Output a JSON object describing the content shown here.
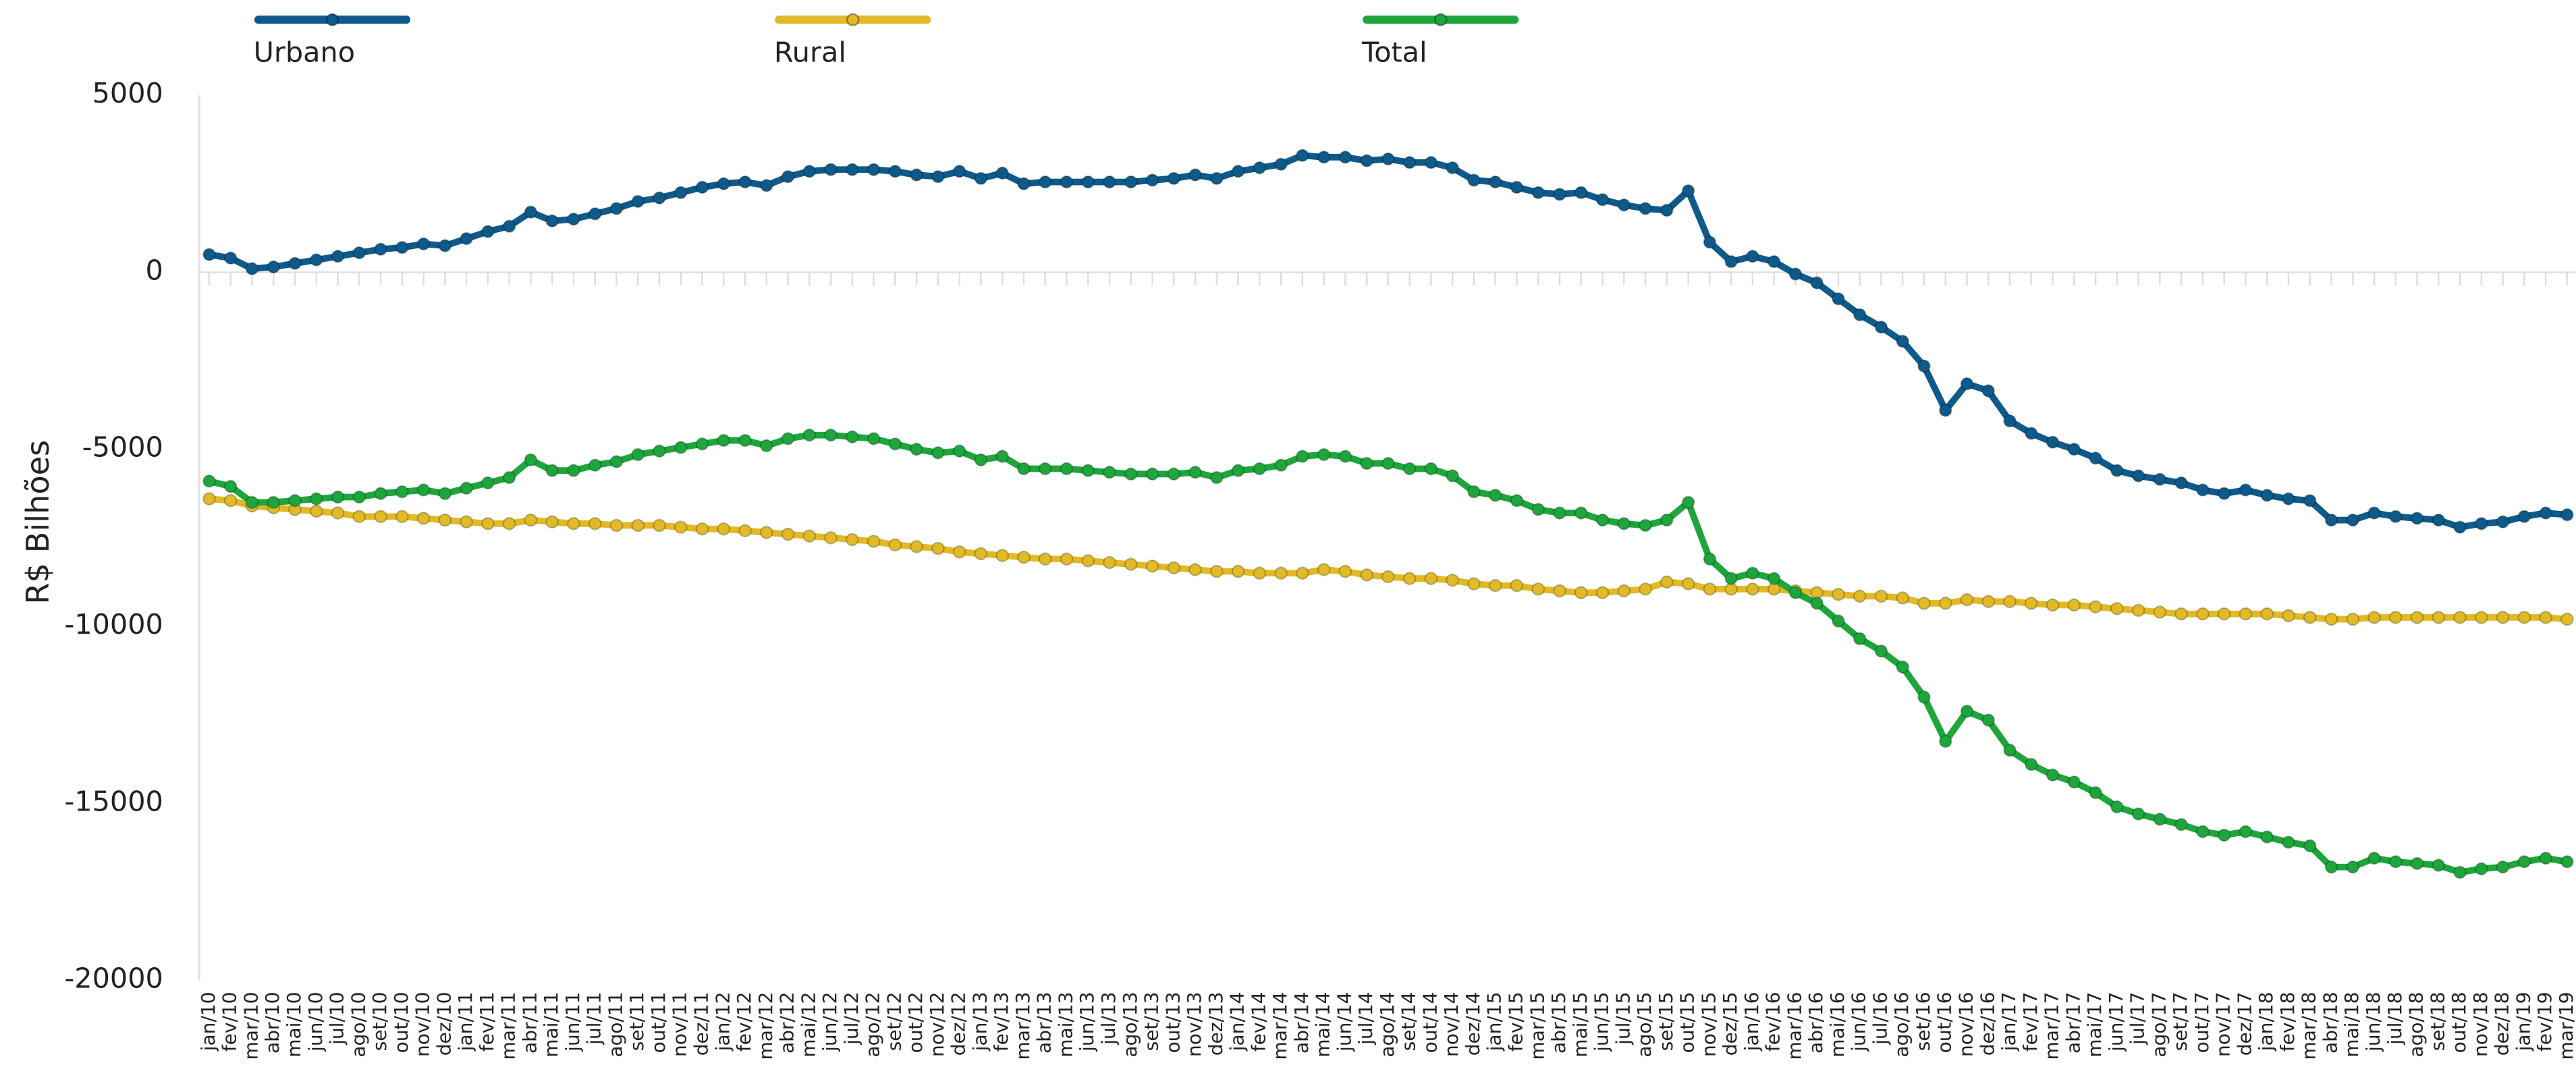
{
  "chart_data": {
    "type": "line",
    "y_label": "R$ Bilhões",
    "categories": [
      "jan/10",
      "fev/10",
      "mar/10",
      "abr/10",
      "mai/10",
      "jun/10",
      "jul/10",
      "ago/10",
      "set/10",
      "out/10",
      "nov/10",
      "dez/10",
      "jan/11",
      "fev/11",
      "mar/11",
      "abr/11",
      "mai/11",
      "jun/11",
      "jul/11",
      "ago/11",
      "set/11",
      "out/11",
      "nov/11",
      "dez/11",
      "jan/12",
      "fev/12",
      "mar/12",
      "abr/12",
      "mai/12",
      "jun/12",
      "jul/12",
      "ago/12",
      "set/12",
      "out/12",
      "nov/12",
      "dez/12",
      "jan/13",
      "fev/13",
      "mar/13",
      "abr/13",
      "mai/13",
      "jun/13",
      "jul/13",
      "ago/13",
      "set/13",
      "out/13",
      "nov/13",
      "dez/13",
      "jan/14",
      "fev/14",
      "mar/14",
      "abr/14",
      "mai/14",
      "jun/14",
      "jul/14",
      "ago/14",
      "set/14",
      "out/14",
      "nov/14",
      "dez/14",
      "jan/15",
      "fev/15",
      "mar/15",
      "abr/15",
      "mai/15",
      "jun/15",
      "jul/15",
      "ago/15",
      "set/15",
      "out/15",
      "nov/15",
      "dez/15",
      "jan/16",
      "fev/16",
      "mar/16",
      "abr/16",
      "mai/16",
      "jun/16",
      "jul/16",
      "ago/16",
      "set/16",
      "out/16",
      "nov/16",
      "dez/16",
      "jan/17",
      "fev/17",
      "mar/17",
      "abr/17",
      "mai/17",
      "jun/17",
      "jul/17",
      "ago/17",
      "set/17",
      "out/17",
      "nov/17",
      "dez/17",
      "jan/18",
      "fev/18",
      "mar/18",
      "abr/18",
      "mai/18",
      "jun/18",
      "jul/18",
      "ago/18",
      "set/18",
      "out/18",
      "nov/18",
      "dez/18",
      "jan/19",
      "fev/19",
      "mar/19"
    ],
    "series": [
      {
        "name": "Urbano",
        "color": "#0e5a8a",
        "values": [
          500,
          400,
          100,
          150,
          250,
          350,
          450,
          550,
          650,
          700,
          800,
          750,
          950,
          1150,
          1300,
          1700,
          1450,
          1500,
          1650,
          1800,
          2000,
          2100,
          2250,
          2400,
          2500,
          2550,
          2450,
          2700,
          2850,
          2900,
          2900,
          2900,
          2850,
          2750,
          2700,
          2850,
          2650,
          2800,
          2500,
          2550,
          2550,
          2550,
          2550,
          2550,
          2600,
          2650,
          2750,
          2650,
          2850,
          2950,
          3050,
          3300,
          3250,
          3250,
          3150,
          3200,
          3100,
          3100,
          2950,
          2600,
          2550,
          2400,
          2250,
          2200,
          2250,
          2050,
          1900,
          1800,
          1750,
          2300,
          850,
          300,
          450,
          300,
          -50,
          -300,
          -750,
          -1200,
          -1550,
          -1950,
          -2650,
          -3900,
          -3150,
          -3350,
          -4200,
          -4550,
          -4800,
          -5000,
          -5250,
          -5600,
          -5750,
          -5850,
          -5950,
          -6150,
          -6250,
          -6150,
          -6300,
          -6400,
          -6450,
          -7000,
          -7000,
          -6800,
          -6900,
          -6950,
          -7000,
          -7200,
          -7100,
          -7050,
          -6900,
          -6800,
          -6850
        ]
      },
      {
        "name": "Rural",
        "color": "#e2b926",
        "values": [
          -6400,
          -6450,
          -6600,
          -6650,
          -6700,
          -6750,
          -6800,
          -6900,
          -6900,
          -6900,
          -6950,
          -7000,
          -7050,
          -7100,
          -7100,
          -7000,
          -7050,
          -7100,
          -7100,
          -7150,
          -7150,
          -7150,
          -7200,
          -7250,
          -7250,
          -7300,
          -7350,
          -7400,
          -7450,
          -7500,
          -7550,
          -7600,
          -7700,
          -7750,
          -7800,
          -7900,
          -7950,
          -8000,
          -8050,
          -8100,
          -8100,
          -8150,
          -8200,
          -8250,
          -8300,
          -8350,
          -8400,
          -8450,
          -8450,
          -8500,
          -8500,
          -8500,
          -8400,
          -8450,
          -8550,
          -8600,
          -8650,
          -8650,
          -8700,
          -8800,
          -8850,
          -8850,
          -8950,
          -9000,
          -9050,
          -9050,
          -9000,
          -8950,
          -8750,
          -8800,
          -8950,
          -8950,
          -8950,
          -8950,
          -9000,
          -9050,
          -9100,
          -9150,
          -9150,
          -9200,
          -9350,
          -9350,
          -9250,
          -9300,
          -9300,
          -9350,
          -9400,
          -9400,
          -9450,
          -9500,
          -9550,
          -9600,
          -9650,
          -9650,
          -9650,
          -9650,
          -9650,
          -9700,
          -9750,
          -9800,
          -9800,
          -9750,
          -9750,
          -9750,
          -9750,
          -9750,
          -9750,
          -9750,
          -9750,
          -9750,
          -9800
        ]
      },
      {
        "name": "Total",
        "color": "#1ea63c",
        "values": [
          -5900,
          -6050,
          -6500,
          -6500,
          -6450,
          -6400,
          -6350,
          -6350,
          -6250,
          -6200,
          -6150,
          -6250,
          -6100,
          -5950,
          -5800,
          -5300,
          -5600,
          -5600,
          -5450,
          -5350,
          -5150,
          -5050,
          -4950,
          -4850,
          -4750,
          -4750,
          -4900,
          -4700,
          -4600,
          -4600,
          -4650,
          -4700,
          -4850,
          -5000,
          -5100,
          -5050,
          -5300,
          -5200,
          -5550,
          -5550,
          -5550,
          -5600,
          -5650,
          -5700,
          -5700,
          -5700,
          -5650,
          -5800,
          -5600,
          -5550,
          -5450,
          -5200,
          -5150,
          -5200,
          -5400,
          -5400,
          -5550,
          -5550,
          -5750,
          -6200,
          -6300,
          -6450,
          -6700,
          -6800,
          -6800,
          -7000,
          -7100,
          -7150,
          -7000,
          -6500,
          -8100,
          -8650,
          -8500,
          -8650,
          -9050,
          -9350,
          -9850,
          -10350,
          -10700,
          -11150,
          -12000,
          -13250,
          -12400,
          -12650,
          -13500,
          -13900,
          -14200,
          -14400,
          -14700,
          -15100,
          -15300,
          -15450,
          -15600,
          -15800,
          -15900,
          -15800,
          -15950,
          -16100,
          -16200,
          -16800,
          -16800,
          -16550,
          -16650,
          -16700,
          -16750,
          -16950,
          -16850,
          -16800,
          -16650,
          -16550,
          -16650
        ]
      }
    ],
    "ylim": [
      -20000,
      5000
    ],
    "yticks": [
      -20000,
      -15000,
      -10000,
      -5000,
      0,
      5000
    ],
    "grid": false
  }
}
